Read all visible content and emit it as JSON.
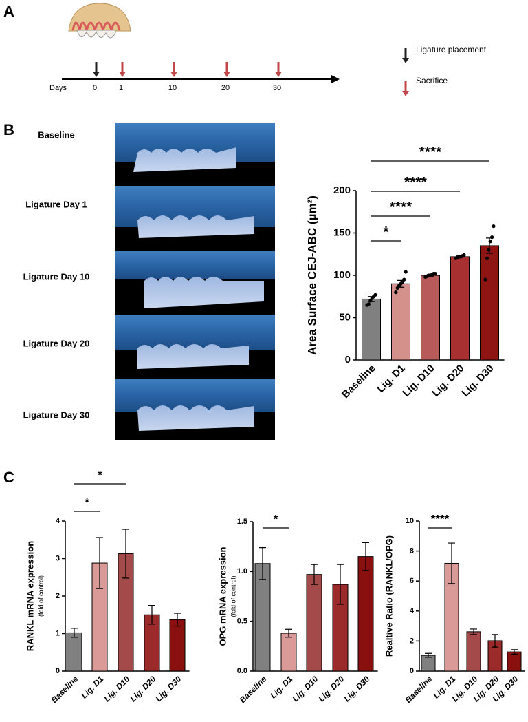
{
  "panel_labels": [
    "A",
    "B",
    "C"
  ],
  "timeline": {
    "axis_label": "Days",
    "days": [
      "0",
      "1",
      "10",
      "20",
      "30"
    ],
    "legend": [
      "Ligature placement",
      "Sacrifice"
    ]
  },
  "images": {
    "labels": [
      "Baseline",
      "Ligature Day 1",
      "Ligature Day 10",
      "Ligature Day 20",
      "Ligature Day 30"
    ]
  },
  "chart_data": [
    {
      "type": "bar",
      "y_label": "Area Surface CEJ-ABC (µm²)",
      "categories": [
        "Baseline",
        "Lig. D1",
        "Lig. D10",
        "Lig. D20",
        "Lig. D30"
      ],
      "values": [
        72,
        90,
        100,
        122,
        135
      ],
      "errors": [
        3,
        4,
        1,
        1,
        9
      ],
      "points": [
        [
          65,
          66,
          70,
          73,
          75,
          77
        ],
        [
          80,
          85,
          88,
          90,
          92,
          95,
          104
        ],
        [
          98,
          99,
          100,
          100,
          101,
          102,
          102
        ],
        [
          120,
          121,
          122,
          122,
          123,
          124
        ],
        [
          95,
          120,
          130,
          140,
          145,
          158
        ]
      ],
      "colors": [
        "#808080",
        "#d4908a",
        "#b85a5a",
        "#a83030",
        "#8f1515"
      ],
      "ylim": [
        0,
        200
      ],
      "yticks": [
        0,
        50,
        100,
        150,
        200
      ],
      "annotations": [
        "*",
        "****",
        "****",
        "****"
      ]
    },
    {
      "type": "bar",
      "y_label": "RANKL mRNA expression",
      "y_sublabel": "(fold of control)",
      "categories": [
        "Baseline",
        "Lig. D1",
        "Lig. D10",
        "Lig. D20",
        "Lig. D30"
      ],
      "values": [
        1.02,
        2.88,
        3.13,
        1.5,
        1.37
      ],
      "errors": [
        0.12,
        0.68,
        0.65,
        0.25,
        0.17
      ],
      "colors": [
        "#808080",
        "#d99a98",
        "#a54a4a",
        "#9b2b2b",
        "#8a0f0f"
      ],
      "ylim": [
        0,
        4
      ],
      "yticks": [
        0,
        1,
        2,
        3,
        4
      ],
      "annotations": [
        "*",
        "*"
      ]
    },
    {
      "type": "bar",
      "y_label": "OPG mRNA expression",
      "y_sublabel": "(fold of control)",
      "categories": [
        "Baseline",
        "Lig. D1",
        "Lig. D10",
        "Lig. D20",
        "Lig. D30"
      ],
      "values": [
        1.08,
        0.38,
        0.97,
        0.87,
        1.15
      ],
      "errors": [
        0.16,
        0.04,
        0.1,
        0.2,
        0.14
      ],
      "colors": [
        "#808080",
        "#d99a98",
        "#a54a4a",
        "#9b2b2b",
        "#8a0f0f"
      ],
      "ylim": [
        0,
        1.5
      ],
      "yticks": [
        {
          "value": 0,
          "label": "0.0"
        },
        0.5,
        {
          "value": 1,
          "label": "1.0"
        },
        1.5
      ],
      "annotations": [
        "*"
      ]
    },
    {
      "type": "bar",
      "y_label": "Realtive Ratio (RANKL/OPG)",
      "categories": [
        "Baseline",
        "Lig. D1",
        "Lig. D10",
        "Lig. D20",
        "Lig. D30"
      ],
      "values": [
        1.05,
        7.18,
        2.62,
        2.02,
        1.28
      ],
      "errors": [
        0.13,
        1.35,
        0.18,
        0.42,
        0.15
      ],
      "colors": [
        "#808080",
        "#d99a98",
        "#a54a4a",
        "#9b2b2b",
        "#8a0f0f"
      ],
      "ylim": [
        0,
        10
      ],
      "yticks": [
        0,
        2,
        4,
        6,
        8,
        10
      ],
      "annotations": [
        "****"
      ]
    }
  ]
}
